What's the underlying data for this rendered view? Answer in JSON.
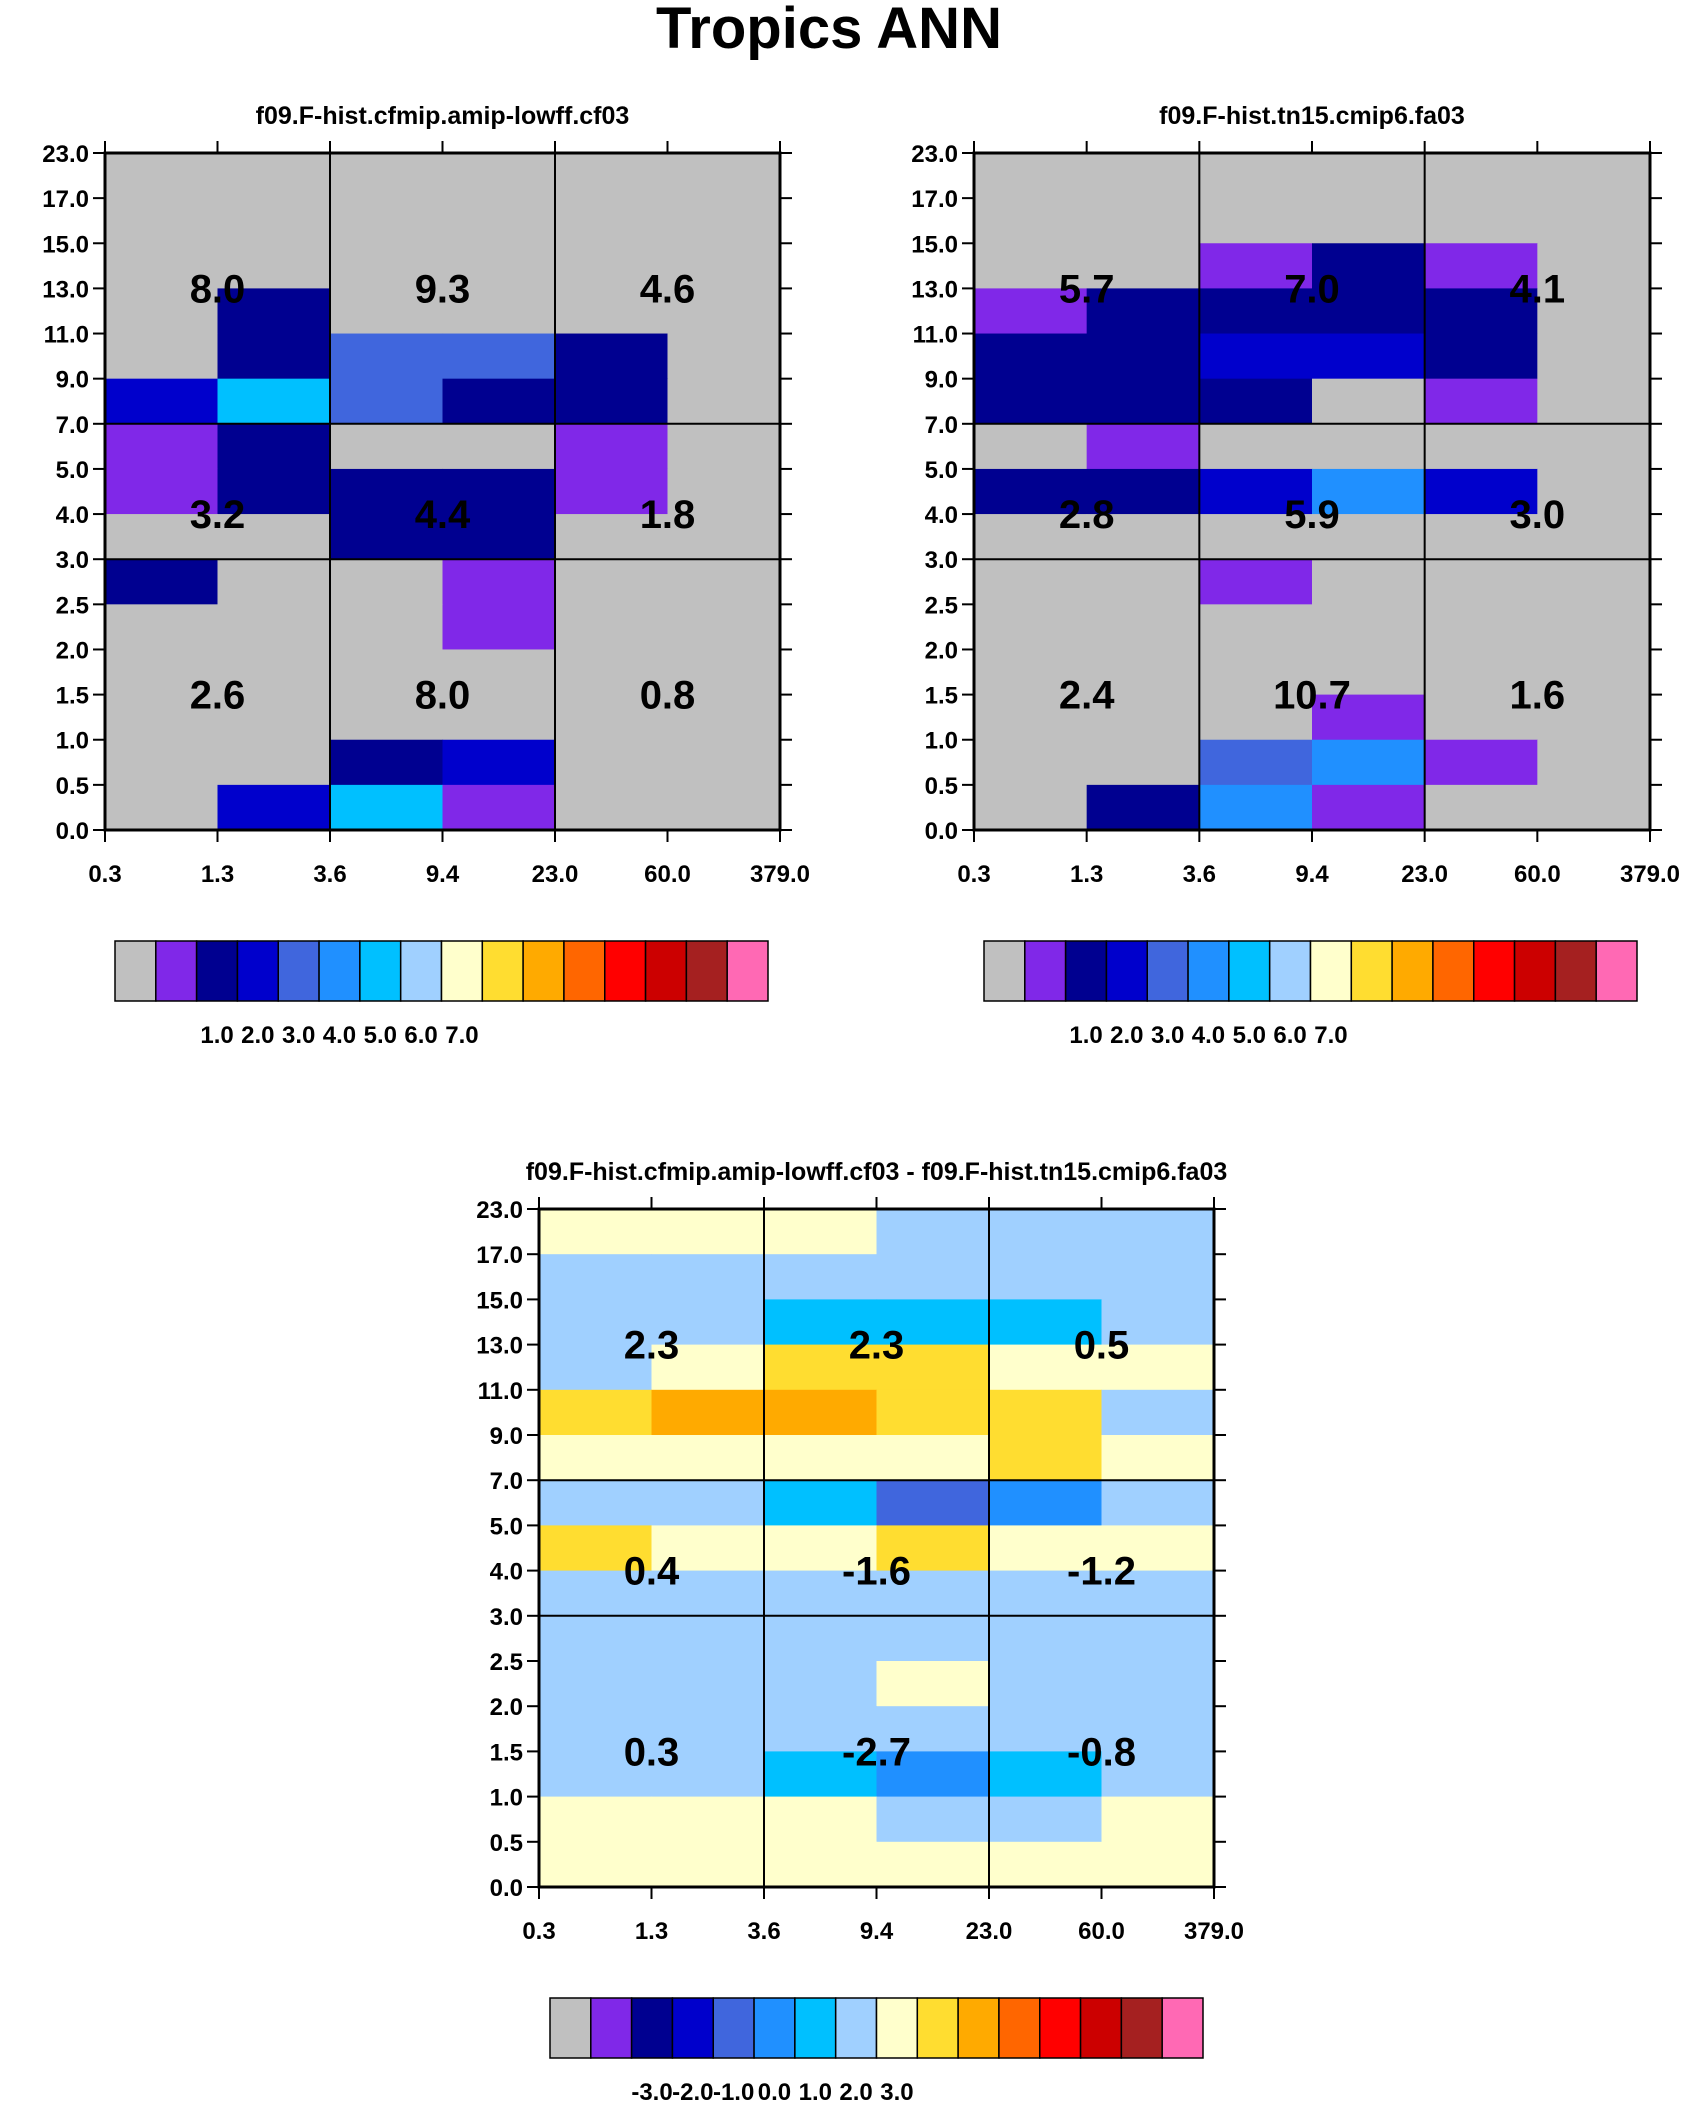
{
  "title": "Tropics ANN",
  "chart_data": [
    {
      "type": "heatmap",
      "title": "f09.F-hist.cfmip.amip-lowff.cf03",
      "x_tick_labels": [
        "0.3",
        "1.3",
        "3.6",
        "9.4",
        "23.0",
        "60.0",
        "379.0"
      ],
      "y_tick_labels": [
        "0.0",
        "0.5",
        "1.0",
        "1.5",
        "2.0",
        "2.5",
        "3.0",
        "4.0",
        "5.0",
        "7.0",
        "9.0",
        "11.0",
        "13.0",
        "15.0",
        "17.0",
        "23.0"
      ],
      "cell_bin_index_rows_top_to_bottom": [
        [
          0,
          0,
          0,
          0,
          0,
          0
        ],
        [
          0,
          0,
          0,
          0,
          0,
          0
        ],
        [
          0,
          0,
          0,
          0,
          0,
          0
        ],
        [
          0,
          2,
          0,
          0,
          0,
          0
        ],
        [
          0,
          2,
          4,
          4,
          2,
          0
        ],
        [
          3,
          6,
          4,
          2,
          2,
          0
        ],
        [
          1,
          2,
          0,
          0,
          1,
          0
        ],
        [
          1,
          2,
          2,
          2,
          1,
          0
        ],
        [
          0,
          0,
          2,
          2,
          0,
          0
        ],
        [
          2,
          0,
          0,
          1,
          0,
          0
        ],
        [
          0,
          0,
          0,
          1,
          0,
          0
        ],
        [
          0,
          0,
          0,
          0,
          0,
          0
        ],
        [
          0,
          0,
          0,
          0,
          0,
          0
        ],
        [
          0,
          0,
          2,
          3,
          0,
          0
        ],
        [
          0,
          3,
          6,
          1,
          0,
          0
        ]
      ],
      "region_values": [
        [
          "8.0",
          "9.3",
          "4.6"
        ],
        [
          "3.2",
          "4.4",
          "1.8"
        ],
        [
          "2.6",
          "8.0",
          "0.8"
        ]
      ],
      "colorbar": {
        "colors": [
          "#c0c0c0",
          "#8028e8",
          "#000090",
          "#0000cc",
          "#4066dd",
          "#2090ff",
          "#00c0ff",
          "#a0d0ff",
          "#ffffcc",
          "#ffdd30",
          "#ffaa00",
          "#ff6600",
          "#ff0000",
          "#cc0000",
          "#a52020",
          "#ff69b4"
        ],
        "labels": [
          "1.0",
          "2.0",
          "3.0",
          "4.0",
          "5.0",
          "6.0",
          "7.0"
        ]
      }
    },
    {
      "type": "heatmap",
      "title": "f09.F-hist.tn15.cmip6.fa03",
      "x_tick_labels": [
        "0.3",
        "1.3",
        "3.6",
        "9.4",
        "23.0",
        "60.0",
        "379.0"
      ],
      "y_tick_labels": [
        "0.0",
        "0.5",
        "1.0",
        "1.5",
        "2.0",
        "2.5",
        "3.0",
        "4.0",
        "5.0",
        "7.0",
        "9.0",
        "11.0",
        "13.0",
        "15.0",
        "17.0",
        "23.0"
      ],
      "cell_bin_index_rows_top_to_bottom": [
        [
          0,
          0,
          0,
          0,
          0,
          0
        ],
        [
          0,
          0,
          0,
          0,
          0,
          0
        ],
        [
          0,
          0,
          1,
          2,
          1,
          0
        ],
        [
          1,
          2,
          2,
          2,
          2,
          0
        ],
        [
          2,
          2,
          3,
          3,
          2,
          0
        ],
        [
          2,
          2,
          2,
          0,
          1,
          0
        ],
        [
          0,
          1,
          0,
          0,
          0,
          0
        ],
        [
          2,
          2,
          3,
          5,
          3,
          0
        ],
        [
          0,
          0,
          0,
          0,
          0,
          0
        ],
        [
          0,
          0,
          1,
          0,
          0,
          0
        ],
        [
          0,
          0,
          0,
          0,
          0,
          0
        ],
        [
          0,
          0,
          0,
          0,
          0,
          0
        ],
        [
          0,
          0,
          0,
          1,
          0,
          0
        ],
        [
          0,
          0,
          4,
          5,
          1,
          0
        ],
        [
          0,
          2,
          5,
          1,
          0,
          0
        ]
      ],
      "region_values": [
        [
          "5.7",
          "7.0",
          "4.1"
        ],
        [
          "2.8",
          "5.9",
          "3.0"
        ],
        [
          "2.4",
          "10.7",
          "1.6"
        ]
      ],
      "colorbar": {
        "colors": [
          "#c0c0c0",
          "#8028e8",
          "#000090",
          "#0000cc",
          "#4066dd",
          "#2090ff",
          "#00c0ff",
          "#a0d0ff",
          "#ffffcc",
          "#ffdd30",
          "#ffaa00",
          "#ff6600",
          "#ff0000",
          "#cc0000",
          "#a52020",
          "#ff69b4"
        ],
        "labels": [
          "1.0",
          "2.0",
          "3.0",
          "4.0",
          "5.0",
          "6.0",
          "7.0"
        ]
      }
    },
    {
      "type": "heatmap",
      "title": "f09.F-hist.cfmip.amip-lowff.cf03 - f09.F-hist.tn15.cmip6.fa03",
      "x_tick_labels": [
        "0.3",
        "1.3",
        "3.6",
        "9.4",
        "23.0",
        "60.0",
        "379.0"
      ],
      "y_tick_labels": [
        "0.0",
        "0.5",
        "1.0",
        "1.5",
        "2.0",
        "2.5",
        "3.0",
        "4.0",
        "5.0",
        "7.0",
        "9.0",
        "11.0",
        "13.0",
        "15.0",
        "17.0",
        "23.0"
      ],
      "cell_bin_index_rows_top_to_bottom": [
        [
          8,
          8,
          8,
          7,
          7,
          7
        ],
        [
          7,
          7,
          7,
          7,
          7,
          7
        ],
        [
          7,
          7,
          6,
          6,
          6,
          7
        ],
        [
          7,
          8,
          9,
          9,
          8,
          8
        ],
        [
          9,
          10,
          10,
          9,
          9,
          7
        ],
        [
          8,
          8,
          8,
          8,
          9,
          8
        ],
        [
          7,
          7,
          6,
          4,
          5,
          7
        ],
        [
          9,
          8,
          8,
          9,
          8,
          8
        ],
        [
          7,
          7,
          7,
          7,
          7,
          7
        ],
        [
          7,
          7,
          7,
          7,
          7,
          7
        ],
        [
          7,
          7,
          7,
          8,
          7,
          7
        ],
        [
          7,
          7,
          7,
          7,
          7,
          7
        ],
        [
          7,
          7,
          6,
          5,
          6,
          7
        ],
        [
          8,
          8,
          8,
          7,
          7,
          8
        ],
        [
          8,
          8,
          8,
          8,
          8,
          8
        ]
      ],
      "region_values": [
        [
          "2.3",
          "2.3",
          "0.5"
        ],
        [
          "0.4",
          "-1.6",
          "-1.2"
        ],
        [
          "0.3",
          "-2.7",
          "-0.8"
        ]
      ],
      "colorbar": {
        "colors": [
          "#c0c0c0",
          "#8028e8",
          "#000090",
          "#0000cc",
          "#4066dd",
          "#2090ff",
          "#00c0ff",
          "#a0d0ff",
          "#ffffcc",
          "#ffdd30",
          "#ffaa00",
          "#ff6600",
          "#ff0000",
          "#cc0000",
          "#a52020",
          "#ff69b4"
        ],
        "labels": [
          "-3.0",
          "-2.0",
          "-1.0",
          "0.0",
          "1.0",
          "2.0",
          "3.0"
        ]
      }
    }
  ]
}
